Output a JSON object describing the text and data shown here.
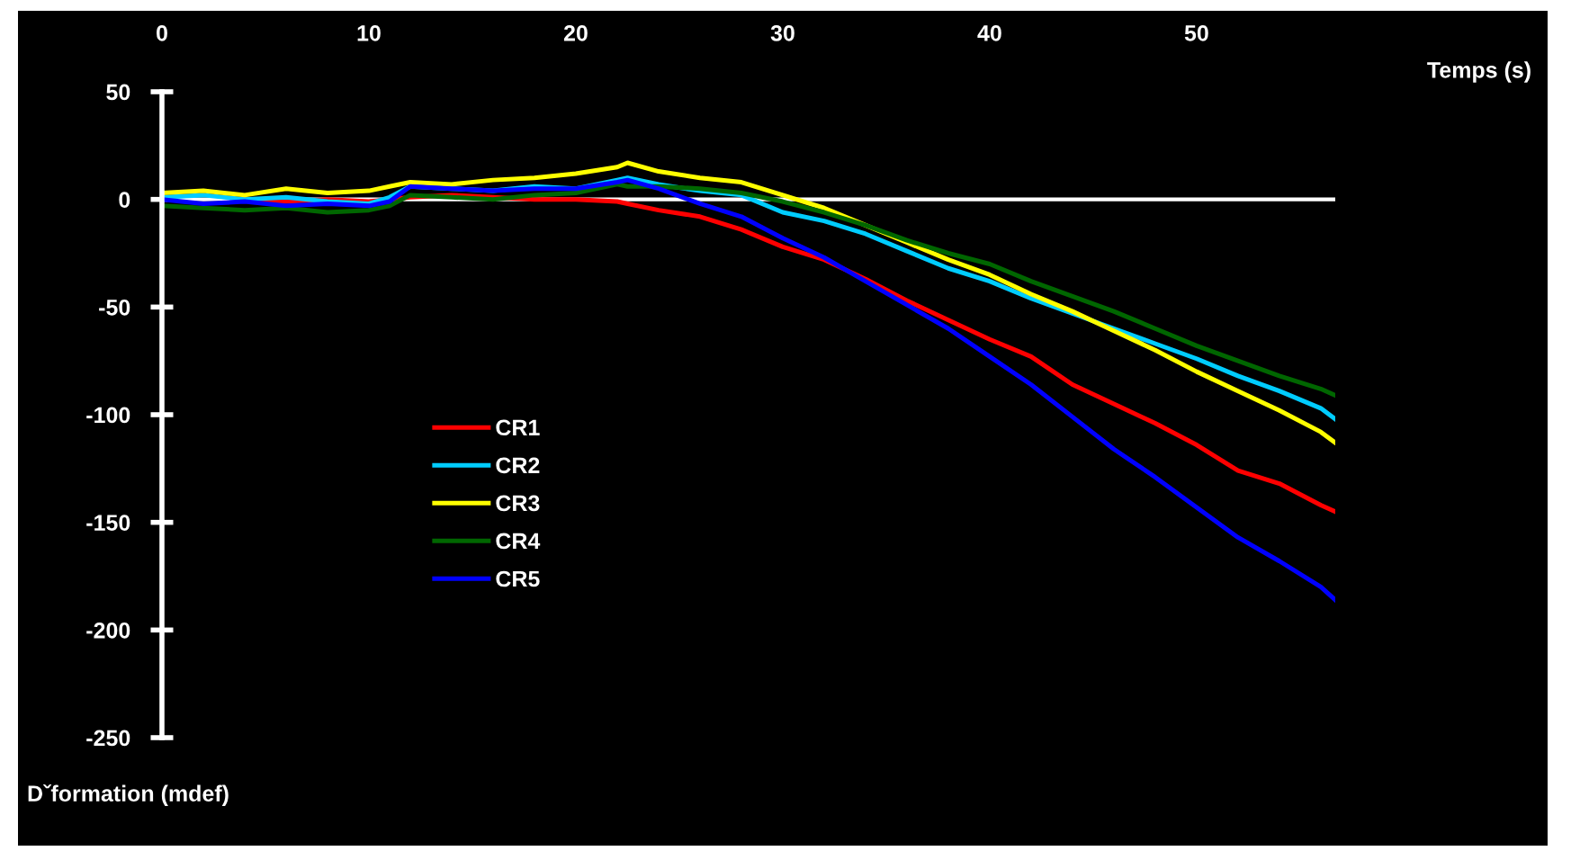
{
  "chart_data": {
    "type": "line",
    "xlabel": "Temps (s)",
    "ylabel": "Dˇformation (mdef)",
    "x": [
      0,
      2,
      4,
      6,
      8,
      10,
      11,
      12,
      14,
      16,
      18,
      20,
      22,
      22.5,
      24,
      26,
      28,
      30,
      32,
      34,
      36,
      38,
      40,
      42,
      44,
      46,
      48,
      50,
      52,
      54,
      56,
      56.7
    ],
    "xlim": [
      0,
      56.7
    ],
    "xticks": [
      0,
      10,
      20,
      30,
      40,
      50
    ],
    "ylim": [
      -250,
      50
    ],
    "yticks": [
      -250,
      -200,
      -150,
      -100,
      -50,
      0,
      50
    ],
    "grid": false,
    "ref_lines": [
      {
        "axis": "y",
        "value": 0,
        "color": "#ffffff"
      }
    ],
    "legend": "left",
    "line_style": "solid",
    "marker": "none",
    "series": [
      {
        "name": "CR1",
        "color": "#ff0000",
        "values": [
          null,
          null,
          0,
          -1,
          0,
          -1,
          0,
          1,
          2,
          1,
          0,
          0,
          -1,
          -2,
          -5,
          -8,
          -14,
          -22,
          -28,
          -37,
          -47,
          -56,
          -65,
          -73,
          -86,
          -95,
          -104,
          -114,
          -126,
          -132,
          -142,
          -145
        ]
      },
      {
        "name": "CR2",
        "color": "#00ccff",
        "values": [
          1,
          2,
          0,
          1,
          -1,
          -2,
          1,
          6,
          5,
          4,
          6,
          5,
          9,
          10,
          7,
          4,
          2,
          -6,
          -10,
          -16,
          -24,
          -32,
          -38,
          -46,
          -53,
          -60,
          -67,
          -74,
          -82,
          -89,
          -97,
          -102
        ]
      },
      {
        "name": "CR3",
        "color": "#ffff00",
        "values": [
          3,
          4,
          2,
          5,
          3,
          4,
          6,
          8,
          7,
          9,
          10,
          12,
          15,
          17,
          13,
          10,
          8,
          2,
          -4,
          -12,
          -20,
          -28,
          -35,
          -44,
          -52,
          -61,
          -70,
          -80,
          -89,
          -98,
          -108,
          -113
        ]
      },
      {
        "name": "CR4",
        "color": "#006600",
        "values": [
          -3,
          -4,
          -5,
          -4,
          -6,
          -5,
          -3,
          2,
          1,
          0,
          2,
          3,
          7,
          6,
          6,
          5,
          3,
          -1,
          -6,
          -12,
          -19,
          -25,
          -30,
          -38,
          -45,
          -52,
          -60,
          -68,
          -75,
          -82,
          -88,
          -91
        ]
      },
      {
        "name": "CR5",
        "color": "#0000ff",
        "values": [
          0,
          -2,
          -1,
          -3,
          -2,
          -3,
          -1,
          6,
          5,
          4,
          5,
          5,
          8,
          9,
          5,
          -2,
          -8,
          -18,
          -27,
          -38,
          -49,
          -60,
          -73,
          -86,
          -101,
          -116,
          -129,
          -143,
          -157,
          -168,
          -180,
          -186
        ]
      }
    ]
  }
}
